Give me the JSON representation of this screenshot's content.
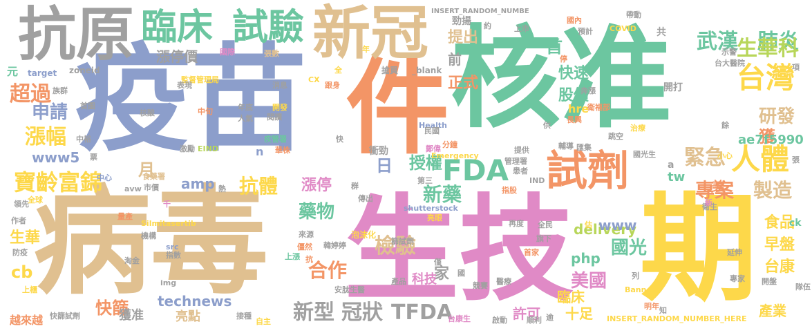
{
  "palette": {
    "gray": "#a0a0a0",
    "tan": "#e0c090",
    "teal": "#6cc6a0",
    "blue": "#8c9ecb",
    "salmon": "#f39566",
    "pink": "#e08ac6",
    "yellow": "#fdd84a",
    "lime": "#b8d65a"
  },
  "words": [
    {
      "text": "疫苗",
      "color": "blue"
    },
    {
      "text": "核准",
      "color": "teal"
    },
    {
      "text": "病毒",
      "color": "tan"
    },
    {
      "text": "生技",
      "color": "pink"
    },
    {
      "text": "件",
      "color": "salmon"
    },
    {
      "text": "期",
      "color": "yellow"
    },
    {
      "text": "抗原",
      "color": "gray"
    },
    {
      "text": "新冠",
      "color": "tan"
    },
    {
      "text": "臨床",
      "color": "teal"
    },
    {
      "text": "試驗",
      "color": "teal"
    },
    {
      "text": "試劑",
      "color": "salmon"
    },
    {
      "text": "人體",
      "color": "yellow"
    },
    {
      "text": "台灣",
      "color": "yellow"
    },
    {
      "text": "武漢",
      "color": "teal"
    },
    {
      "text": "肺炎",
      "color": "teal"
    },
    {
      "text": "生華科",
      "color": "lime"
    },
    {
      "text": "FDA",
      "color": "teal"
    },
    {
      "text": "寶齡富錦",
      "color": "yellow"
    },
    {
      "text": "超過",
      "color": "salmon"
    },
    {
      "text": "漲幅",
      "color": "yellow"
    },
    {
      "text": "申請",
      "color": "blue"
    },
    {
      "text": "緊急",
      "color": "tan"
    },
    {
      "text": "研發",
      "color": "tan"
    },
    {
      "text": "專案",
      "color": "salmon"
    },
    {
      "text": "製造",
      "color": "tan"
    },
    {
      "text": "檢驗",
      "color": "tan"
    },
    {
      "text": "合作",
      "color": "salmon"
    },
    {
      "text": "新藥",
      "color": "teal"
    },
    {
      "text": "抗體",
      "color": "yellow"
    },
    {
      "text": "藥物",
      "color": "teal"
    },
    {
      "text": "美國",
      "color": "pink"
    },
    {
      "text": "國光",
      "color": "teal"
    },
    {
      "text": "TFDA",
      "color": "gray"
    },
    {
      "text": "新型",
      "color": "gray"
    },
    {
      "text": "冠狀",
      "color": "gray"
    },
    {
      "text": "technews",
      "color": "blue"
    },
    {
      "text": "delivery",
      "color": "lime"
    },
    {
      "text": "授權",
      "color": "teal"
    },
    {
      "text": "快篩",
      "color": "salmon"
    },
    {
      "text": "食品",
      "color": "yellow"
    },
    {
      "text": "台康",
      "color": "yellow"
    },
    {
      "text": "早盤",
      "color": "yellow"
    },
    {
      "text": "生華",
      "color": "yellow"
    },
    {
      "text": "產業",
      "color": "yellow"
    },
    {
      "text": "股價",
      "color": "teal"
    },
    {
      "text": "快速",
      "color": "teal"
    },
    {
      "text": "正式",
      "color": "salmon"
    },
    {
      "text": "提出",
      "color": "tan"
    },
    {
      "text": "首",
      "color": "teal"
    },
    {
      "text": "獲",
      "color": "salmon"
    },
    {
      "text": "日",
      "color": "blue"
    },
    {
      "text": "月",
      "color": "tan"
    },
    {
      "text": "美",
      "color": "salmon"
    },
    {
      "text": "元",
      "color": "teal"
    },
    {
      "text": "cb",
      "color": "yellow"
    },
    {
      "text": "amp",
      "color": "blue"
    },
    {
      "text": "www5",
      "color": "blue"
    },
    {
      "text": "www",
      "color": "blue"
    },
    {
      "text": "php",
      "color": "teal"
    },
    {
      "text": "tw",
      "color": "teal"
    },
    {
      "text": "ae7f5990",
      "color": "teal"
    },
    {
      "text": "漲停",
      "color": "pink"
    },
    {
      "text": "漲停價",
      "color": "gray"
    },
    {
      "text": "前",
      "color": "gray"
    },
    {
      "text": "二",
      "color": "pink"
    },
    {
      "text": "家",
      "color": "gray"
    },
    {
      "text": "科技",
      "color": "pink"
    },
    {
      "text": "亮點",
      "color": "tan"
    },
    {
      "text": "獲准",
      "color": "gray"
    },
    {
      "text": "越來越",
      "color": "salmon"
    },
    {
      "text": "許可",
      "color": "pink"
    },
    {
      "text": "十足",
      "color": "yellow"
    },
    {
      "text": "臨床",
      "color": "yellow"
    },
    {
      "text": "hre",
      "color": "yellow"
    },
    {
      "text": "共",
      "color": "gray"
    },
    {
      "text": "開打",
      "color": "gray"
    },
    {
      "text": "勁揚",
      "color": "gray"
    },
    {
      "text": "INSERT_RANDOM_NUMBE",
      "color": "gray"
    },
    {
      "text": "INSERT_RANDOM_NUMBER_HERE",
      "color": "yellow"
    },
    {
      "text": "_blank",
      "color": "gray"
    },
    {
      "text": "搶買",
      "color": "gray"
    },
    {
      "text": "Health",
      "color": "blue"
    },
    {
      "text": "Emergency",
      "color": "yellow"
    },
    {
      "text": "shutterstock",
      "color": "blue"
    },
    {
      "text": "衝勁",
      "color": "gray"
    },
    {
      "text": "國際",
      "color": "pink"
    },
    {
      "text": "張數",
      "color": "tan"
    },
    {
      "text": "監督管理局",
      "color": "yellow"
    },
    {
      "text": "消息",
      "color": "gray"
    },
    {
      "text": "表現",
      "color": "gray"
    },
    {
      "text": "族群",
      "color": "gray"
    },
    {
      "text": "首圖",
      "color": "gray"
    },
    {
      "text": "核酸",
      "color": "gray"
    },
    {
      "text": "中旬",
      "color": "salmon"
    },
    {
      "text": "年底",
      "color": "gray"
    },
    {
      "text": "人氣",
      "color": "gray"
    },
    {
      "text": "開發",
      "color": "yellow"
    },
    {
      "text": "閱讀",
      "color": "gray"
    },
    {
      "text": "疾管署",
      "color": "teal"
    },
    {
      "text": "華株",
      "color": "salmon"
    },
    {
      "text": "EIND",
      "color": "lime"
    },
    {
      "text": "激勵",
      "color": "gray"
    },
    {
      "text": "中裕",
      "color": "gray"
    },
    {
      "text": "食藥署",
      "color": "tan"
    },
    {
      "text": "市價",
      "color": "gray"
    },
    {
      "text": "zoneid",
      "color": "gray"
    },
    {
      "text": "target",
      "color": "blue"
    },
    {
      "text": "CX",
      "color": "yellow"
    },
    {
      "text": "全",
      "color": "yellow"
    },
    {
      "text": "年",
      "color": "yellow"
    },
    {
      "text": "約",
      "color": "gray"
    },
    {
      "text": "上市",
      "color": "gray"
    },
    {
      "text": "國內",
      "color": "salmon"
    },
    {
      "text": "預計",
      "color": "gray"
    },
    {
      "text": "帶動",
      "color": "gray"
    },
    {
      "text": "COVID",
      "color": "yellow"
    },
    {
      "text": "示警",
      "color": "gray"
    },
    {
      "text": "台大醫院",
      "color": "gray"
    },
    {
      "text": "衛福部",
      "color": "salmon"
    },
    {
      "text": "長興",
      "color": "salmon"
    },
    {
      "text": "跳空",
      "color": "gray"
    },
    {
      "text": "奔漲",
      "color": "gray"
    },
    {
      "text": "治療",
      "color": "yellow"
    },
    {
      "text": "民國",
      "color": "gray"
    },
    {
      "text": "匯集",
      "color": "gray"
    },
    {
      "text": "輔導",
      "color": "gray"
    },
    {
      "text": "國光生",
      "color": "gray"
    },
    {
      "text": "衛生",
      "color": "gray"
    },
    {
      "text": "小心",
      "color": "yellow"
    },
    {
      "text": "分鐘",
      "color": "salmon"
    },
    {
      "text": "提供",
      "color": "gray"
    },
    {
      "text": "管理署",
      "color": "gray"
    },
    {
      "text": "患者",
      "color": "gray"
    },
    {
      "text": "IND",
      "color": "gray"
    },
    {
      "text": "指股",
      "color": "salmon"
    },
    {
      "text": "第三",
      "color": "gray"
    },
    {
      "text": "傳出",
      "color": "gray"
    },
    {
      "text": "亮眼",
      "color": "yellow"
    },
    {
      "text": "再度",
      "color": "gray"
    },
    {
      "text": "全民",
      "color": "gray"
    },
    {
      "text": "旗下",
      "color": "gray"
    },
    {
      "text": "首家",
      "color": "salmon"
    },
    {
      "text": "延伸",
      "color": "gray"
    },
    {
      "text": "專家",
      "color": "gray"
    },
    {
      "text": "開盤",
      "color": "gray"
    },
    {
      "text": "隊伍",
      "color": "gray"
    },
    {
      "text": "明年",
      "color": "salmon"
    },
    {
      "text": "Banner",
      "color": "yellow"
    },
    {
      "text": "醫療",
      "color": "gray"
    },
    {
      "text": "順利",
      "color": "gray"
    },
    {
      "text": "啟動",
      "color": "gray"
    },
    {
      "text": "台康生",
      "color": "pink"
    },
    {
      "text": "競賽",
      "color": "gray"
    },
    {
      "text": "產品",
      "color": "gray"
    },
    {
      "text": "安肽生醫",
      "color": "gray"
    },
    {
      "text": "泡沫化",
      "color": "yellow"
    },
    {
      "text": "韓婷婷",
      "color": "gray"
    },
    {
      "text": "篩試劑",
      "color": "gray"
    },
    {
      "text": "來源",
      "color": "gray"
    },
    {
      "text": "僵然",
      "color": "salmon"
    },
    {
      "text": "上漲",
      "color": "teal"
    },
    {
      "text": "淘金",
      "color": "gray"
    },
    {
      "text": "指數",
      "color": "gray"
    },
    {
      "text": "img",
      "color": "gray"
    },
    {
      "text": "src",
      "color": "blue"
    },
    {
      "text": "Silmitasertib",
      "color": "yellow"
    },
    {
      "text": "量產",
      "color": "salmon"
    },
    {
      "text": "機構",
      "color": "gray"
    },
    {
      "text": "千",
      "color": "pink"
    },
    {
      "text": "全球",
      "color": "yellow"
    },
    {
      "text": "領先",
      "color": "gray"
    },
    {
      "text": "作者",
      "color": "gray"
    },
    {
      "text": "防疫",
      "color": "gray"
    },
    {
      "text": "上櫃",
      "color": "yellow"
    },
    {
      "text": "快篩試劑",
      "color": "gray"
    },
    {
      "text": "接種",
      "color": "gray"
    },
    {
      "text": "自主",
      "color": "yellow"
    },
    {
      "text": "avw",
      "color": "gray"
    },
    {
      "text": "熱",
      "color": "gray"
    },
    {
      "text": "中心",
      "color": "blue"
    },
    {
      "text": "ck",
      "color": "teal"
    },
    {
      "text": "a",
      "color": "gray"
    },
    {
      "text": "n",
      "color": "blue"
    },
    {
      "text": "知",
      "color": "gray"
    },
    {
      "text": "列",
      "color": "gray"
    },
    {
      "text": "估",
      "color": "yellow"
    },
    {
      "text": "新",
      "color": "pink"
    },
    {
      "text": "張",
      "color": "gray"
    },
    {
      "text": "項",
      "color": "gray"
    },
    {
      "text": "停",
      "color": "salmon"
    },
    {
      "text": "快",
      "color": "gray"
    },
    {
      "text": "群",
      "color": "gray"
    },
    {
      "text": "抗",
      "color": "salmon"
    },
    {
      "text": "僅",
      "color": "gray"
    },
    {
      "text": "國",
      "color": "gray"
    },
    {
      "text": "逾",
      "color": "gray"
    },
    {
      "text": "供",
      "color": "gray"
    },
    {
      "text": "鄭偉",
      "color": "pink"
    },
    {
      "text": "票",
      "color": "gray"
    },
    {
      "text": "餘",
      "color": "gray"
    },
    {
      "text": "跟身",
      "color": "salmon"
    }
  ]
}
